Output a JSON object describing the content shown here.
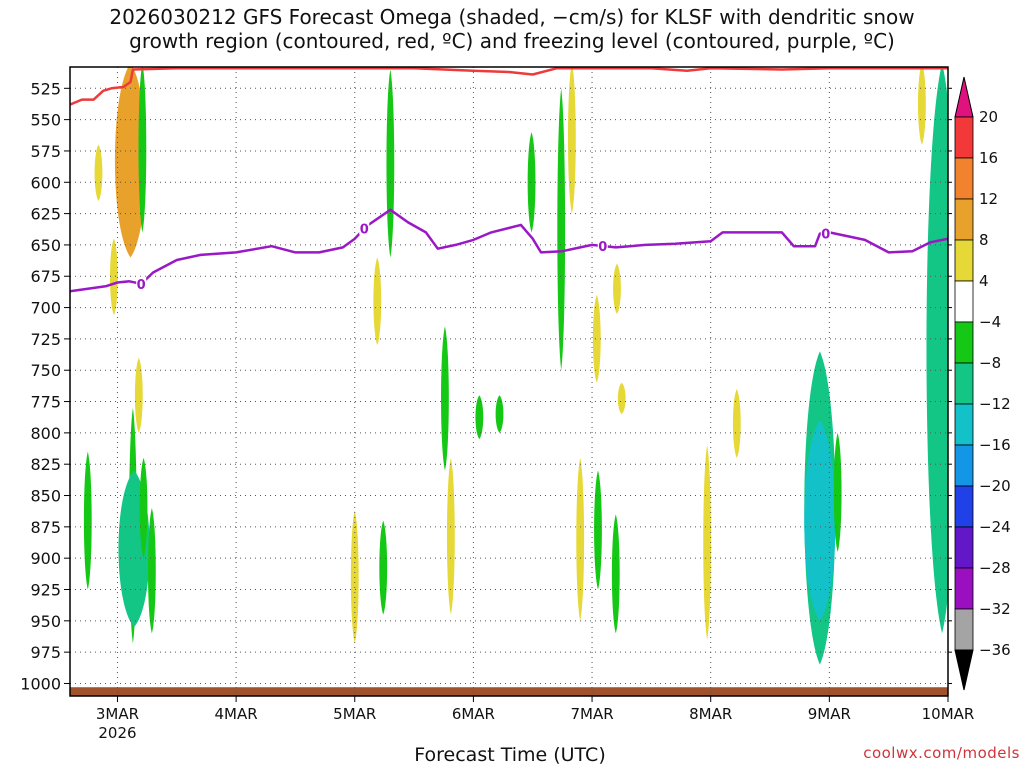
{
  "title": "2026030212 GFS Forecast Omega (shaded, −cm/s) for KLSF with dendritic snow\ngrowth region (contoured, red, ºC) and freezing level (contoured, purple, ºC)",
  "xlabel": "Forecast Time (UTC)",
  "credit": "coolwx.com/models",
  "chart_data": {
    "type": "heatmap",
    "xlabel": "Forecast Time (UTC)",
    "ylabel": "",
    "x_ticks": [
      "3MAR",
      "4MAR",
      "5MAR",
      "6MAR",
      "7MAR",
      "8MAR",
      "9MAR",
      "10MAR"
    ],
    "x_year_label": "2026",
    "x_range_days": [
      2.6,
      10.0
    ],
    "y_ticks": [
      525,
      550,
      575,
      600,
      625,
      650,
      675,
      700,
      725,
      750,
      775,
      800,
      825,
      850,
      875,
      900,
      925,
      950,
      975,
      1000
    ],
    "y_range_hpa": [
      508,
      1010
    ],
    "grid": true,
    "colorbar": {
      "labels": [
        "20",
        "16",
        "12",
        "8",
        "4",
        "−4",
        "−8",
        "−12",
        "−16",
        "−20",
        "−24",
        "−28",
        "−32",
        "−36"
      ],
      "bands": [
        {
          "lo": 16,
          "hi": 20,
          "color": "#f23838"
        },
        {
          "lo": 12,
          "hi": 16,
          "color": "#f2822e"
        },
        {
          "lo": 8,
          "hi": 12,
          "color": "#e8a22c"
        },
        {
          "lo": 4,
          "hi": 8,
          "color": "#e6d836"
        },
        {
          "lo": -4,
          "hi": 4,
          "color": "#ffffff"
        },
        {
          "lo": -8,
          "hi": -4,
          "color": "#16c816"
        },
        {
          "lo": -12,
          "hi": -8,
          "color": "#13c686"
        },
        {
          "lo": -16,
          "hi": -12,
          "color": "#13c2c8"
        },
        {
          "lo": -20,
          "hi": -16,
          "color": "#1496e6"
        },
        {
          "lo": -24,
          "hi": -20,
          "color": "#2040e8"
        },
        {
          "lo": -28,
          "hi": -24,
          "color": "#6218c8"
        },
        {
          "lo": -32,
          "hi": -28,
          "color": "#9a10c0"
        },
        {
          "lo": -36,
          "hi": -32,
          "color": "#a4a4a4"
        }
      ],
      "top_arrow_color": "#e0127e",
      "bottom_arrow_color": "#000000"
    },
    "omega_regions": [
      {
        "t": 2.75,
        "p_top": 815,
        "p_bot": 925,
        "value": -6
      },
      {
        "t": 2.97,
        "p_top": 645,
        "p_bot": 706,
        "value": 5
      },
      {
        "t": 3.11,
        "p_top": 505,
        "p_bot": 660,
        "value": 10
      },
      {
        "t": 3.13,
        "p_top": 780,
        "p_bot": 968,
        "value": -6
      },
      {
        "t": 3.14,
        "p_top": 830,
        "p_bot": 955,
        "value": -10
      },
      {
        "t": 3.18,
        "p_top": 740,
        "p_bot": 800,
        "value": 5
      },
      {
        "t": 3.21,
        "p_top": 505,
        "p_bot": 640,
        "value": -6
      },
      {
        "t": 3.22,
        "p_top": 820,
        "p_bot": 900,
        "value": -6
      },
      {
        "t": 3.29,
        "p_top": 860,
        "p_bot": 960,
        "value": -6
      },
      {
        "t": 2.84,
        "p_top": 570,
        "p_bot": 615,
        "value": 5
      },
      {
        "t": 5.0,
        "p_top": 862,
        "p_bot": 968,
        "value": 5
      },
      {
        "t": 5.24,
        "p_top": 870,
        "p_bot": 945,
        "value": -6
      },
      {
        "t": 5.19,
        "p_top": 660,
        "p_bot": 730,
        "value": 5
      },
      {
        "t": 5.3,
        "p_top": 510,
        "p_bot": 660,
        "value": -6
      },
      {
        "t": 5.76,
        "p_top": 715,
        "p_bot": 830,
        "value": -6
      },
      {
        "t": 5.81,
        "p_top": 820,
        "p_bot": 945,
        "value": 5
      },
      {
        "t": 6.05,
        "p_top": 770,
        "p_bot": 805,
        "value": -6
      },
      {
        "t": 6.22,
        "p_top": 770,
        "p_bot": 800,
        "value": -6
      },
      {
        "t": 6.49,
        "p_top": 560,
        "p_bot": 640,
        "value": -6
      },
      {
        "t": 6.74,
        "p_top": 525,
        "p_bot": 750,
        "value": -6
      },
      {
        "t": 6.83,
        "p_top": 505,
        "p_bot": 625,
        "value": 5
      },
      {
        "t": 6.9,
        "p_top": 820,
        "p_bot": 950,
        "value": 5
      },
      {
        "t": 7.04,
        "p_top": 690,
        "p_bot": 760,
        "value": 5
      },
      {
        "t": 7.05,
        "p_top": 830,
        "p_bot": 925,
        "value": -6
      },
      {
        "t": 7.2,
        "p_top": 865,
        "p_bot": 960,
        "value": -6
      },
      {
        "t": 7.21,
        "p_top": 665,
        "p_bot": 705,
        "value": 5
      },
      {
        "t": 7.25,
        "p_top": 760,
        "p_bot": 785,
        "value": 5
      },
      {
        "t": 7.97,
        "p_top": 810,
        "p_bot": 965,
        "value": 5
      },
      {
        "t": 8.22,
        "p_top": 765,
        "p_bot": 820,
        "value": 5
      },
      {
        "t": 8.92,
        "p_top": 735,
        "p_bot": 985,
        "value": -10
      },
      {
        "t": 8.92,
        "p_top": 790,
        "p_bot": 950,
        "value": -14
      },
      {
        "t": 9.07,
        "p_top": 800,
        "p_bot": 895,
        "value": -6
      },
      {
        "t": 9.78,
        "p_top": 505,
        "p_bot": 570,
        "value": 5
      },
      {
        "t": 9.95,
        "p_top": 505,
        "p_bot": 960,
        "value": -10
      }
    ],
    "dendritic_snow_growth_contour": {
      "color": "red",
      "points": [
        [
          2.6,
          538
        ],
        [
          2.7,
          534
        ],
        [
          2.8,
          534
        ],
        [
          2.88,
          527
        ],
        [
          2.95,
          525
        ],
        [
          3.05,
          524
        ],
        [
          3.11,
          520
        ],
        [
          3.13,
          510
        ],
        [
          3.5,
          509
        ],
        [
          4.0,
          509
        ],
        [
          5.0,
          509
        ],
        [
          5.5,
          509
        ],
        [
          6.0,
          511
        ],
        [
          6.3,
          512
        ],
        [
          6.5,
          514
        ],
        [
          6.7,
          509
        ],
        [
          7.0,
          509
        ],
        [
          7.5,
          509
        ],
        [
          7.8,
          511
        ],
        [
          8.0,
          509
        ],
        [
          8.6,
          510
        ],
        [
          9.0,
          509
        ],
        [
          9.6,
          509
        ],
        [
          10.0,
          509
        ]
      ]
    },
    "freezing_level_contour": {
      "color": "purple",
      "label": "0",
      "points": [
        [
          2.6,
          687
        ],
        [
          2.75,
          685
        ],
        [
          2.9,
          683
        ],
        [
          3.0,
          680
        ],
        [
          3.1,
          679
        ],
        [
          3.2,
          681
        ],
        [
          3.3,
          672
        ],
        [
          3.5,
          662
        ],
        [
          3.7,
          658
        ],
        [
          4.0,
          656
        ],
        [
          4.3,
          651
        ],
        [
          4.5,
          656
        ],
        [
          4.7,
          656
        ],
        [
          4.9,
          652
        ],
        [
          5.0,
          645
        ],
        [
          5.1,
          635
        ],
        [
          5.3,
          622
        ],
        [
          5.45,
          632
        ],
        [
          5.6,
          640
        ],
        [
          5.7,
          653
        ],
        [
          5.85,
          650
        ],
        [
          6.0,
          646
        ],
        [
          6.15,
          640
        ],
        [
          6.4,
          634
        ],
        [
          6.5,
          645
        ],
        [
          6.57,
          656
        ],
        [
          6.75,
          655
        ],
        [
          6.9,
          652
        ],
        [
          7.0,
          650
        ],
        [
          7.2,
          652
        ],
        [
          7.45,
          650
        ],
        [
          7.7,
          649
        ],
        [
          8.0,
          647
        ],
        [
          8.1,
          640
        ],
        [
          8.35,
          640
        ],
        [
          8.6,
          640
        ],
        [
          8.7,
          651
        ],
        [
          8.88,
          651
        ],
        [
          8.92,
          641
        ],
        [
          9.0,
          640
        ],
        [
          9.3,
          646
        ],
        [
          9.5,
          656
        ],
        [
          9.7,
          655
        ],
        [
          9.85,
          648
        ],
        [
          10.0,
          645
        ]
      ]
    },
    "ground": {
      "color": "sienna",
      "p": 1003
    }
  }
}
